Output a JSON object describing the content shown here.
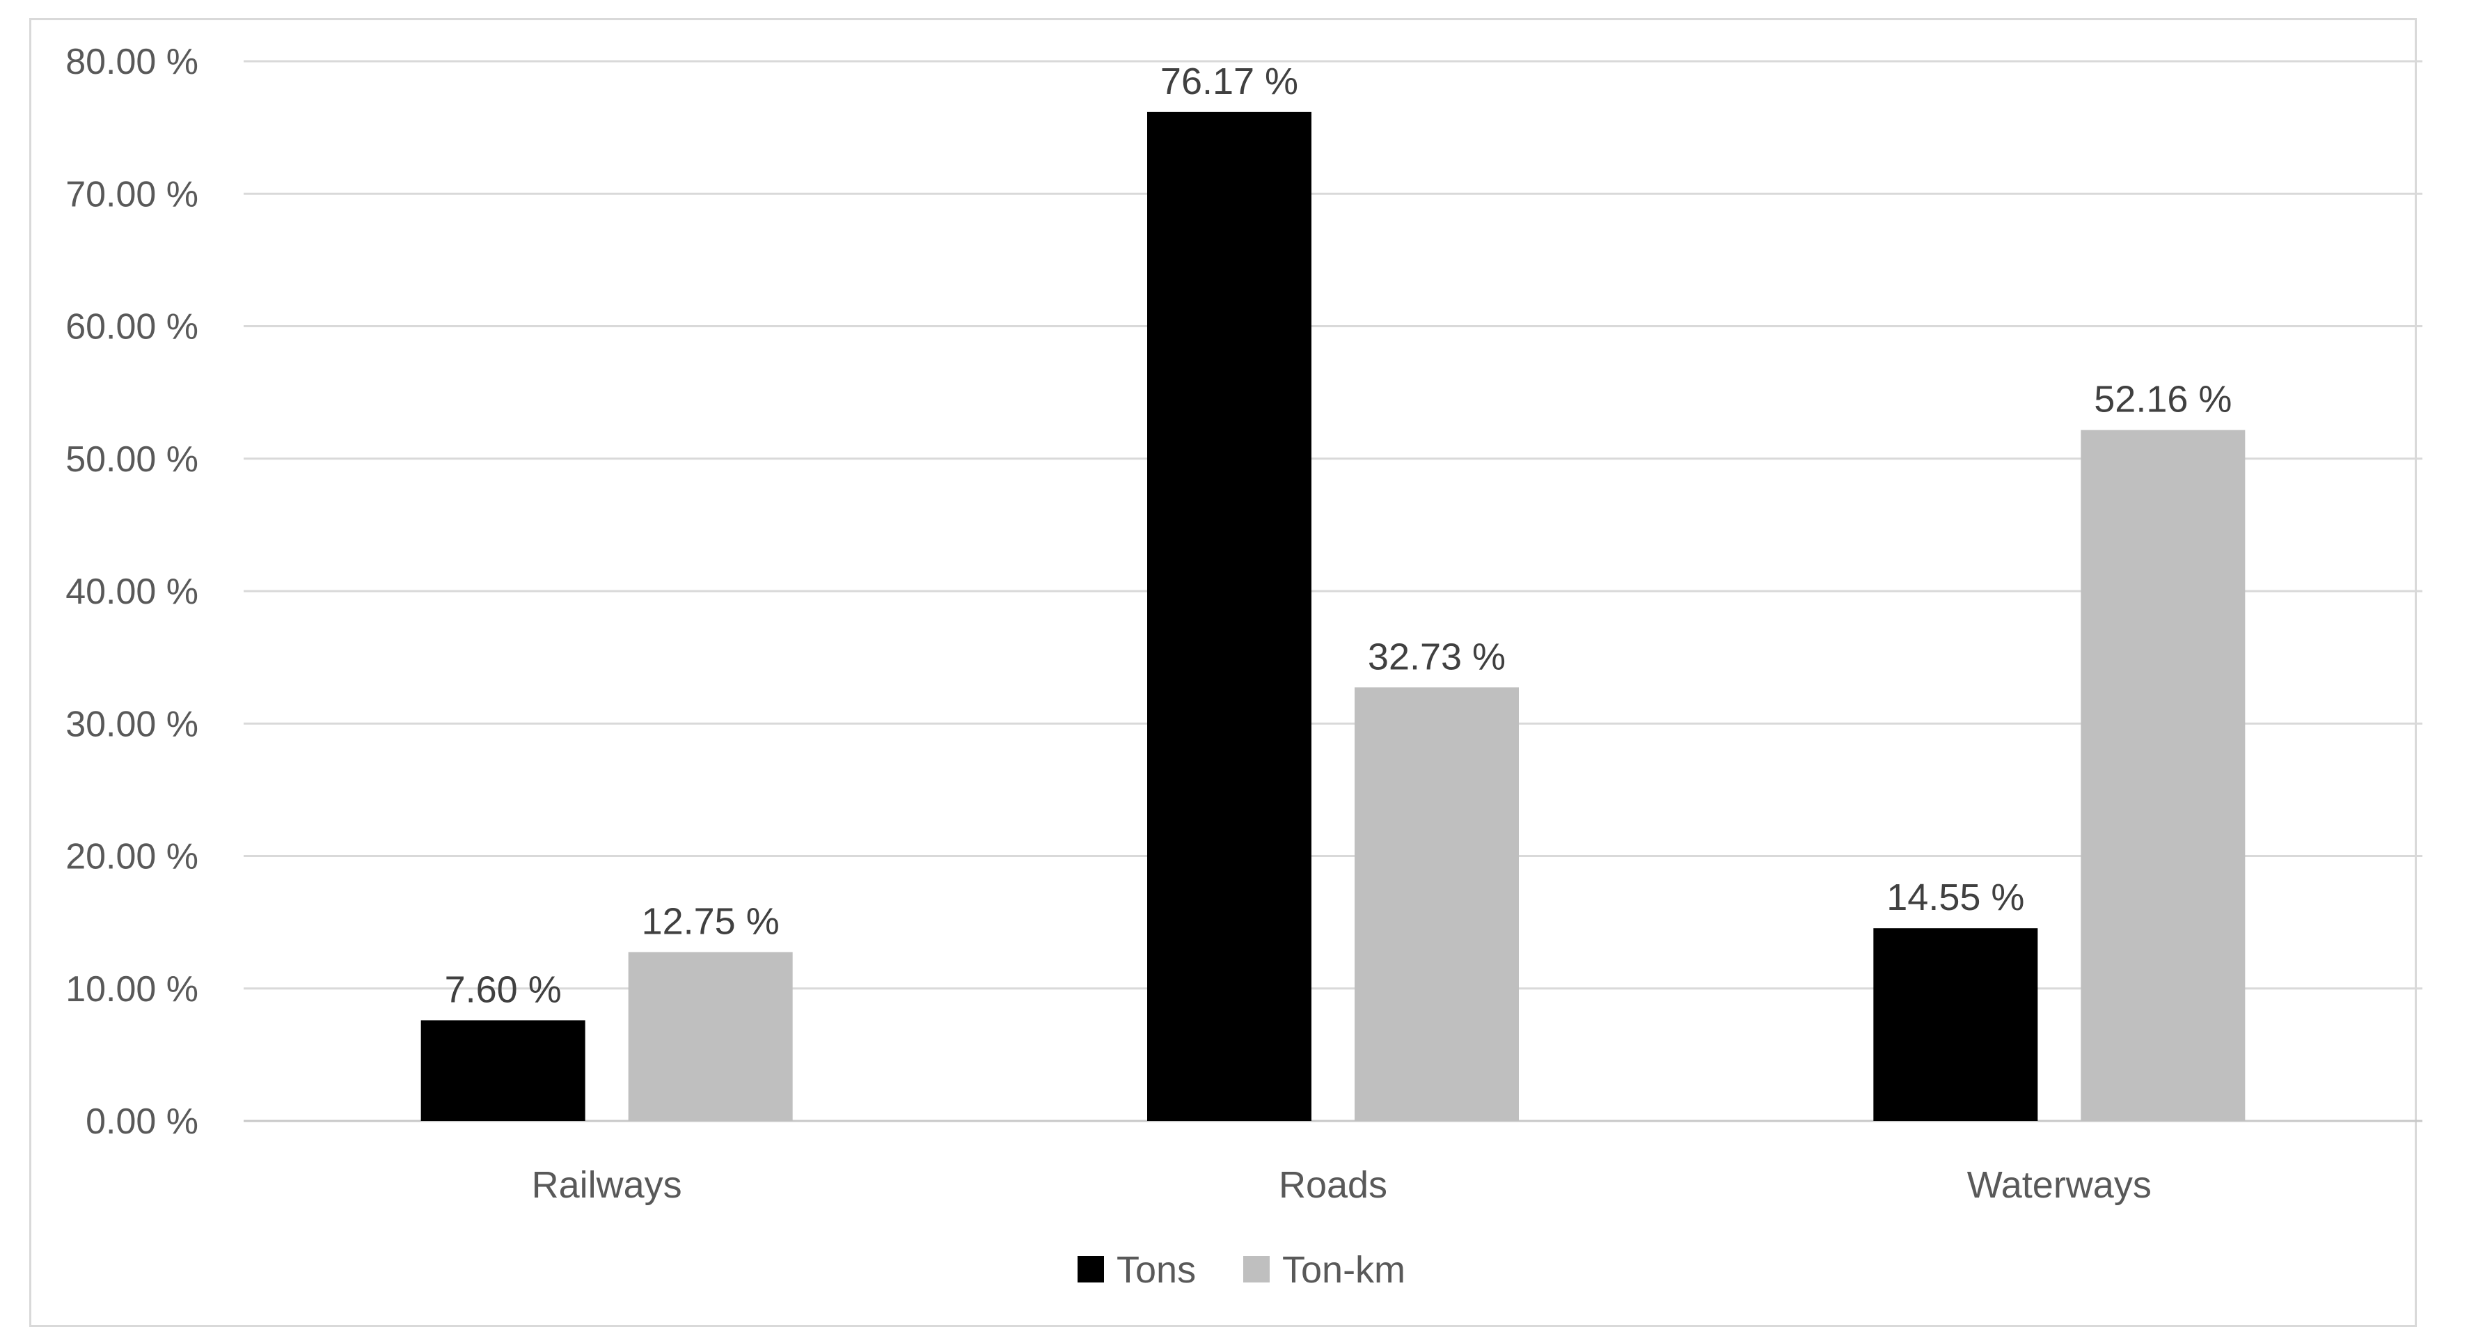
{
  "chart_data": {
    "type": "bar",
    "categories": [
      "Railways",
      "Roads",
      "Waterways"
    ],
    "series": [
      {
        "name": "Tons",
        "values": [
          7.6,
          76.17,
          14.55
        ],
        "color": "#000000",
        "labels": [
          "7.60 %",
          "76.17 %",
          "14.55 %"
        ]
      },
      {
        "name": "Ton-km",
        "values": [
          12.75,
          32.73,
          52.16
        ],
        "color": "#bfbfbf",
        "labels": [
          "12.75 %",
          "32.73 %",
          "52.16 %"
        ]
      }
    ],
    "ylim": [
      0,
      80
    ],
    "yticks": [
      0,
      10,
      20,
      30,
      40,
      50,
      60,
      70,
      80
    ],
    "ytick_labels": [
      "0.00 %",
      "10.00 %",
      "20.00 %",
      "30.00 %",
      "40.00 %",
      "50.00 %",
      "60.00 %",
      "70.00 %",
      "80.00 %"
    ],
    "grid": true,
    "legend_position": "bottom-center",
    "title": "",
    "xlabel": "",
    "ylabel": ""
  }
}
